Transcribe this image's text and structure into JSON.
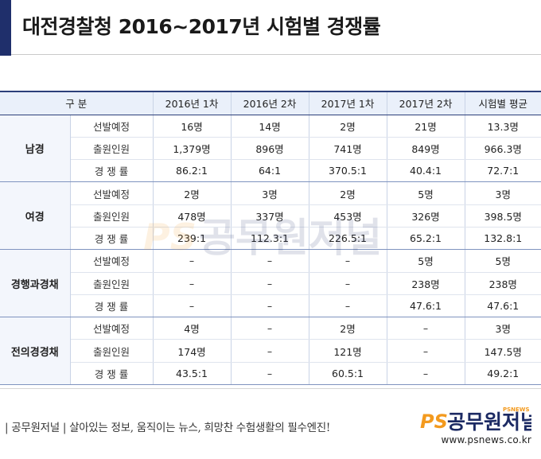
{
  "title": "대전경찰청 2016~2017년 시험별 경쟁률",
  "table": {
    "headers": [
      "구 분",
      "2016년 1차",
      "2016년 2차",
      "2017년 1차",
      "2017년 2차",
      "시험별 평균"
    ],
    "groups": [
      {
        "name": "남경",
        "rows": [
          {
            "label": "선발예정",
            "cells": [
              "16명",
              "14명",
              "2명",
              "21명",
              "13.3명"
            ]
          },
          {
            "label": "출원인원",
            "cells": [
              "1,379명",
              "896명",
              "741명",
              "849명",
              "966.3명"
            ]
          },
          {
            "label": "경 쟁 률",
            "cells": [
              "86.2:1",
              "64:1",
              "370.5:1",
              "40.4:1",
              "72.7:1"
            ]
          }
        ]
      },
      {
        "name": "여경",
        "rows": [
          {
            "label": "선발예정",
            "cells": [
              "2명",
              "3명",
              "2명",
              "5명",
              "3명"
            ]
          },
          {
            "label": "출원인원",
            "cells": [
              "478명",
              "337명",
              "453명",
              "326명",
              "398.5명"
            ]
          },
          {
            "label": "경 쟁 률",
            "cells": [
              "239:1",
              "112.3:1",
              "226.5:1",
              "65.2:1",
              "132.8:1"
            ]
          }
        ]
      },
      {
        "name": "경행과경채",
        "rows": [
          {
            "label": "선발예정",
            "cells": [
              "–",
              "–",
              "–",
              "5명",
              "5명"
            ]
          },
          {
            "label": "출원인원",
            "cells": [
              "–",
              "–",
              "–",
              "238명",
              "238명"
            ]
          },
          {
            "label": "경 쟁 률",
            "cells": [
              "–",
              "–",
              "–",
              "47.6:1",
              "47.6:1"
            ]
          }
        ]
      },
      {
        "name": "전의경경채",
        "rows": [
          {
            "label": "선발예정",
            "cells": [
              "4명",
              "–",
              "2명",
              "–",
              "3명"
            ]
          },
          {
            "label": "출원인원",
            "cells": [
              "174명",
              "–",
              "121명",
              "–",
              "147.5명"
            ]
          },
          {
            "label": "경 쟁 률",
            "cells": [
              "43.5:1",
              "–",
              "60.5:1",
              "–",
              "49.2:1"
            ]
          }
        ]
      }
    ]
  },
  "footer": {
    "tagline": "| 공무원저널 | 살아있는 정보, 움직이는 뉴스, 희망찬 수험생활의 필수엔진!",
    "brand_name": "공무원저널",
    "brand_mark": "PS",
    "brand_sub": "PSNEWS",
    "url": "www.psnews.co.kr"
  },
  "watermark": {
    "mark": "PS",
    "text": "공무원저널"
  },
  "colors": {
    "navy": "#1f2f6b",
    "header_bg": "#eaf0fa",
    "brand_orange": "#f39a1e",
    "brand_navy": "#1c2a63"
  }
}
